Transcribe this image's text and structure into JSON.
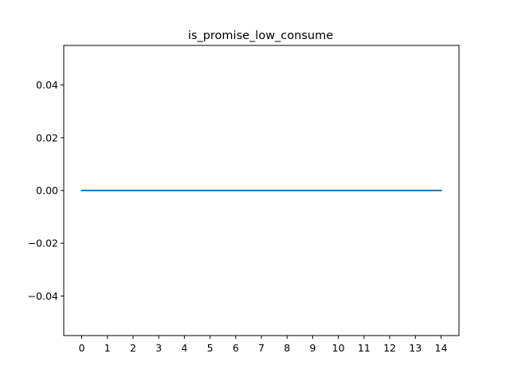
{
  "chart_data": {
    "type": "line",
    "title": "is_promise_low_consume",
    "xlabel": "",
    "ylabel": "",
    "x": [
      0,
      1,
      2,
      3,
      4,
      5,
      6,
      7,
      8,
      9,
      10,
      11,
      12,
      13,
      14
    ],
    "series": [
      {
        "values": [
          0,
          0,
          0,
          0,
          0,
          0,
          0,
          0,
          0,
          0,
          0,
          0,
          0,
          0,
          0
        ],
        "color": "#1f77b4"
      }
    ],
    "xlim": [
      -0.7,
      14.7
    ],
    "ylim": [
      -0.055,
      0.055
    ],
    "xticks": [
      0,
      1,
      2,
      3,
      4,
      5,
      6,
      7,
      8,
      9,
      10,
      11,
      12,
      13,
      14
    ],
    "xtick_labels": [
      "0",
      "1",
      "2",
      "3",
      "4",
      "5",
      "6",
      "7",
      "8",
      "9",
      "10",
      "11",
      "12",
      "13",
      "14"
    ],
    "yticks": [
      0.04,
      0.02,
      0.0,
      -0.02,
      -0.04
    ],
    "ytick_labels": [
      "0.04",
      "0.02",
      "0.00",
      "−0.02",
      "−0.04"
    ],
    "grid": false,
    "legend": "none"
  }
}
